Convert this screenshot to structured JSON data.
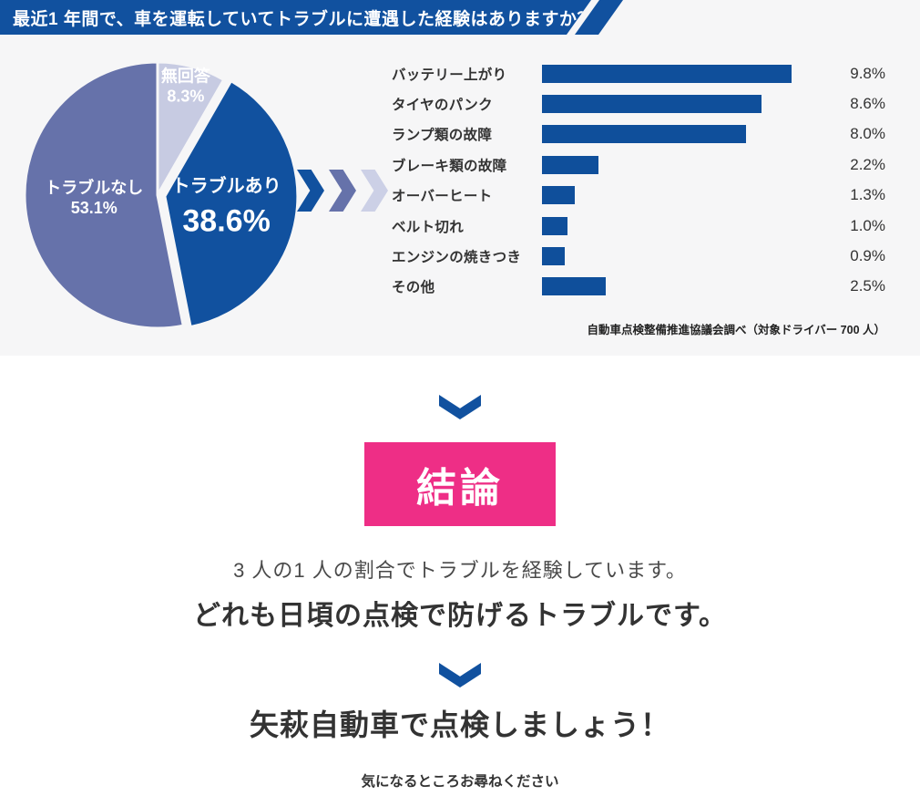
{
  "header": {
    "title": "最近1 年間で、車を運転していてトラブルに遭遇した経験はありますか？",
    "bg": "#11519f"
  },
  "chart_data": [
    {
      "type": "pie",
      "start_angle": "top",
      "direction": "clockwise",
      "label_color": "#ffffff",
      "slices": [
        {
          "label": "無回答",
          "value": 8.3,
          "value_label": "8.3%",
          "color": "#c7cbe2",
          "exploded": false,
          "emphasis": false
        },
        {
          "label": "トラブルあり",
          "value": 38.6,
          "value_label": "38.6%",
          "color": "#11519f",
          "exploded": true,
          "emphasis": true
        },
        {
          "label": "トラブルなし",
          "value": 53.1,
          "value_label": "53.1%",
          "color": "#6672aa",
          "exploded": false,
          "emphasis": false
        }
      ]
    },
    {
      "type": "bar",
      "orientation": "horizontal",
      "categories": [
        "バッテリー上がり",
        "タイヤのパンク",
        "ランプ類の故障",
        "ブレーキ類の故障",
        "オーバーヒート",
        "ベルト切れ",
        "エンジンの焼きつき",
        "その他"
      ],
      "values": [
        9.8,
        8.6,
        8.0,
        2.2,
        1.3,
        1.0,
        0.9,
        2.5
      ],
      "value_labels": [
        "9.8%",
        "8.6%",
        "8.0%",
        "2.2%",
        "1.3%",
        "1.0%",
        "0.9%",
        "2.5%"
      ],
      "bar_color": "#0f4f9b",
      "xlim": [
        0,
        10.5
      ],
      "grid": false,
      "legend": "none"
    }
  ],
  "flow_arrows": {
    "colors": [
      "#11519f",
      "#6672aa",
      "#ccd0e6"
    ]
  },
  "source_note": "自動車点検整備推進協議会調べ（対象ドライバー 700 人）",
  "conclusion": {
    "badge": "結論",
    "badge_bg": "#ee2e86",
    "arrow_color": "#11519f",
    "line1": "3 人の1 人の割合でトラブルを経験しています。",
    "line2": "どれも日頃の点検で防げるトラブルです。",
    "cta": "矢萩自動車で点検しましょう！",
    "sub": "気になるところお尋ねください"
  },
  "colors": {
    "survey_bg": "#f6f6f7",
    "accent_blue": "#11519f",
    "accent_purple": "#6672aa",
    "accent_lavender": "#ccd0e6",
    "badge_pink": "#ee2e86"
  }
}
